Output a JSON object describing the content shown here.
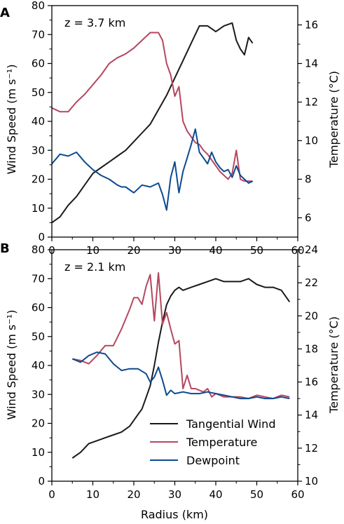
{
  "chart_data": [
    {
      "type": "line",
      "panel_label": "A",
      "annotation": "z = 3.7 km",
      "xlabel": "",
      "ylabel": "Wind Speed (m s⁻¹)",
      "y2label": "Temperature (°C)",
      "xlim": [
        0,
        60
      ],
      "ylim": [
        0,
        80
      ],
      "y2lim": [
        5,
        17
      ],
      "xticks": [
        "0",
        "10",
        "20",
        "30",
        "40",
        "50",
        "60"
      ],
      "yticks": [
        "0",
        "10",
        "20",
        "30",
        "40",
        "50",
        "60",
        "70",
        "80"
      ],
      "y2ticks": [
        "6",
        "8",
        "10",
        "12",
        "14",
        "16"
      ],
      "colors": {
        "wind": "#1a1a1a",
        "temperature": "#b5475f",
        "dewpoint": "#0b4a90"
      },
      "series": [
        {
          "key": "wind",
          "axis": "left",
          "x": [
            0,
            2,
            4,
            6,
            8,
            10,
            12,
            14,
            16,
            18,
            20,
            22,
            24,
            26,
            28,
            30,
            32,
            34,
            36,
            38,
            40,
            42,
            44,
            45,
            46,
            47,
            48,
            49
          ],
          "y": [
            5,
            7,
            11,
            14,
            18,
            22,
            24,
            26,
            28,
            30,
            33,
            36,
            39,
            44,
            49,
            55,
            61,
            67,
            73,
            73,
            71,
            73,
            74,
            68,
            65,
            63,
            69,
            67
          ]
        },
        {
          "key": "temperature",
          "axis": "right",
          "x": [
            0,
            2,
            4,
            6,
            8,
            10,
            12,
            14,
            16,
            18,
            20,
            22,
            24,
            26,
            27,
            28,
            29,
            30,
            31,
            32,
            33,
            34,
            35,
            36,
            37,
            38,
            39,
            40,
            41,
            42,
            43,
            44,
            45,
            46,
            47,
            48,
            49
          ],
          "y": [
            11.7,
            11.5,
            11.5,
            12,
            12.4,
            12.9,
            13.4,
            14,
            14.3,
            14.5,
            14.8,
            15.2,
            15.6,
            15.6,
            15.2,
            14,
            13.4,
            12.3,
            12.8,
            11,
            10.5,
            10.2,
            9.9,
            9.8,
            9.5,
            9.3,
            9.0,
            8.7,
            8.4,
            8.2,
            8.0,
            8.3,
            9.5,
            8.0,
            7.9,
            7.9,
            7.9
          ]
        },
        {
          "key": "dewpoint",
          "axis": "right",
          "x": [
            0,
            2,
            4,
            6,
            8,
            10,
            12,
            14,
            16,
            17,
            18,
            20,
            22,
            24,
            26,
            27,
            28,
            29,
            30,
            31,
            32,
            33,
            34,
            35,
            36,
            37,
            38,
            39,
            40,
            41,
            42,
            43,
            44,
            45,
            46,
            47,
            48,
            49
          ],
          "y": [
            8.8,
            9.3,
            9.2,
            9.4,
            8.9,
            8.5,
            8.2,
            8.0,
            7.7,
            7.6,
            7.6,
            7.3,
            7.7,
            7.6,
            7.8,
            7.2,
            6.4,
            8.1,
            8.9,
            7.3,
            8.4,
            9.1,
            9.8,
            10.6,
            9.4,
            9.1,
            8.8,
            9.4,
            8.9,
            8.6,
            8.4,
            8.5,
            8.1,
            8.7,
            8.2,
            8.0,
            7.8,
            7.9
          ]
        }
      ]
    },
    {
      "type": "line",
      "panel_label": "B",
      "annotation": "z = 2.1 km",
      "xlabel": "Radius (km)",
      "ylabel": "Wind Speed (m s⁻¹)",
      "y2label": "Temperature (°C)",
      "xlim": [
        0,
        60
      ],
      "ylim": [
        0,
        80
      ],
      "y2lim": [
        10,
        24
      ],
      "xticks": [
        "0",
        "10",
        "20",
        "30",
        "40",
        "50",
        "60"
      ],
      "yticks": [
        "0",
        "10",
        "20",
        "30",
        "40",
        "50",
        "60",
        "70",
        "80"
      ],
      "y2ticks": [
        "10",
        "12",
        "14",
        "16",
        "18",
        "20",
        "22",
        "24"
      ],
      "colors": {
        "wind": "#1a1a1a",
        "temperature": "#b5475f",
        "dewpoint": "#0b4a90"
      },
      "legend": {
        "placement": "bottom-right",
        "entries": [
          "Tangential Wind",
          "Temperature",
          "Dewpoint"
        ]
      },
      "series": [
        {
          "key": "wind",
          "axis": "left",
          "x": [
            5,
            7,
            9,
            11,
            13,
            15,
            17,
            19,
            21,
            22,
            23,
            24,
            25,
            26,
            27,
            28,
            29,
            30,
            31,
            32,
            34,
            36,
            38,
            40,
            42,
            44,
            46,
            48,
            50,
            52,
            54,
            56,
            58
          ],
          "y": [
            8,
            10,
            13,
            14,
            15,
            16,
            17,
            19,
            23,
            25,
            29,
            33,
            40,
            48,
            55,
            61,
            64,
            66,
            67,
            66,
            67,
            68,
            69,
            70,
            69,
            69,
            69,
            70,
            68,
            67,
            67,
            66,
            62
          ]
        },
        {
          "key": "temperature",
          "axis": "right",
          "x": [
            5,
            7,
            9,
            11,
            13,
            15,
            17,
            19,
            20,
            21,
            22,
            23,
            24,
            25,
            26,
            27,
            28,
            29,
            30,
            31,
            32,
            33,
            34,
            35,
            36,
            37,
            38,
            39,
            40,
            42,
            44,
            46,
            48,
            50,
            52,
            54,
            56,
            58
          ],
          "y": [
            17.4,
            17.3,
            17.1,
            17.6,
            18.2,
            18.2,
            19.2,
            20.4,
            21.1,
            21.1,
            20.7,
            21.8,
            22.5,
            19.7,
            22.6,
            19.5,
            20.2,
            19.2,
            18.3,
            18.5,
            15.6,
            16.4,
            15.6,
            15.6,
            15.5,
            15.4,
            15.6,
            15.1,
            15.3,
            15.1,
            15.1,
            15.1,
            15.0,
            15.2,
            15.1,
            15.0,
            15.2,
            15.1
          ]
        },
        {
          "key": "dewpoint",
          "axis": "right",
          "x": [
            5,
            7,
            9,
            11,
            13,
            15,
            17,
            19,
            21,
            23,
            24,
            25,
            26,
            27,
            28,
            29,
            30,
            32,
            34,
            36,
            38,
            40,
            42,
            44,
            46,
            48,
            50,
            52,
            54,
            56,
            58
          ],
          "y": [
            17.4,
            17.2,
            17.6,
            17.8,
            17.7,
            17.1,
            16.7,
            16.8,
            16.8,
            16.5,
            16.0,
            16.3,
            16.9,
            16.1,
            15.2,
            15.5,
            15.3,
            15.4,
            15.3,
            15.3,
            15.4,
            15.3,
            15.2,
            15.1,
            15.0,
            15.0,
            15.1,
            15.0,
            15.0,
            15.1,
            15.0
          ]
        }
      ]
    }
  ]
}
